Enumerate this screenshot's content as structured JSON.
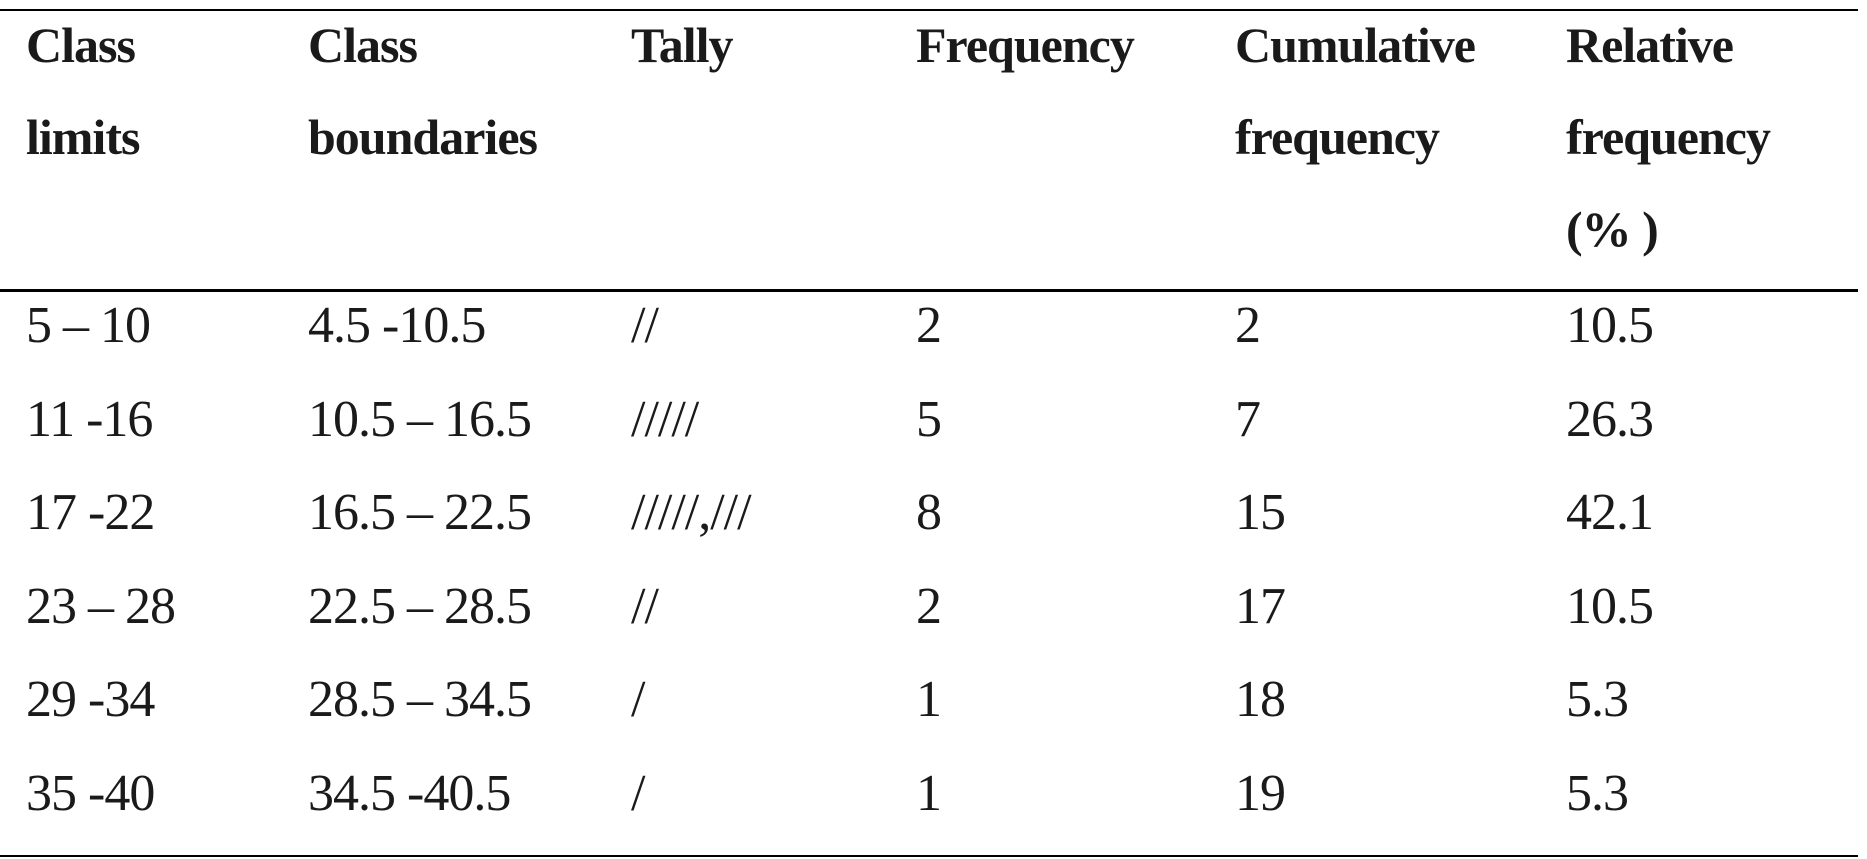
{
  "table": {
    "header": [
      [
        "Class",
        "limits"
      ],
      [
        "Class",
        "boundaries"
      ],
      [
        "Tally"
      ],
      [
        "Frequency"
      ],
      [
        "Cumulative",
        "frequency"
      ],
      [
        "Relative",
        "frequency",
        "(% )"
      ]
    ],
    "rows": [
      [
        "5 – 10",
        "4.5 -10.5",
        "//",
        "2",
        "2",
        "10.5"
      ],
      [
        "11 -16",
        "10.5 – 16.5",
        "/////",
        "5",
        "7",
        "26.3"
      ],
      [
        "17 -22",
        "16.5 – 22.5",
        "/////,///",
        "8",
        "15",
        "42.1"
      ],
      [
        "23 – 28",
        "22.5 – 28.5",
        "//",
        "2",
        "17",
        "10.5"
      ],
      [
        "29 -34",
        "28.5 – 34.5",
        "/",
        "1",
        "18",
        "5.3"
      ],
      [
        "35 -40",
        "34.5 -40.5",
        "/",
        "1",
        "19",
        "5.3"
      ]
    ]
  }
}
